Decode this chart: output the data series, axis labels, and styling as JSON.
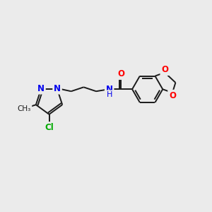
{
  "bg_color": "#ebebeb",
  "bond_color": "#1a1a1a",
  "colors": {
    "N": "#0000ee",
    "O": "#ff0000",
    "Cl": "#00aa00",
    "C": "#1a1a1a",
    "NH": "#0000ee"
  },
  "figsize": [
    3.0,
    3.0
  ],
  "dpi": 100
}
